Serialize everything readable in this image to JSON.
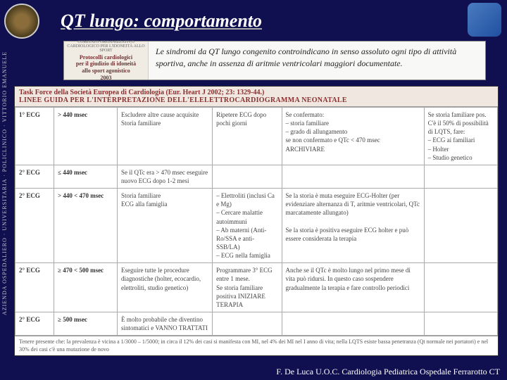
{
  "header": {
    "title": "QT lungo: comportamento",
    "vertical_text": "AZIENDA OSPEDALIERO · UNIVERSITARIA · POLICLINICO · VITTORIO EMANUELE"
  },
  "protocol_box": {
    "mini": "COMITATO ORGANIZZATIVO CARDIOLOGICO PER L'IDONEITÀ ALLO SPORT",
    "line1": "Protocolli cardiologici",
    "line2": "per il giudizio di idoneità",
    "line3": "allo sport agonistico",
    "line4": "2003"
  },
  "indication": "Le sindromi da QT lungo congenito controindicano in senso assoluto ogni tipo di attività sportiva, anche in assenza di aritmie ventricolari maggiori documentate.",
  "taskforce": {
    "line1": "Task Force della Società Europea di Cardiologia (Eur. Heart J 2002; 23: 1329-44.)",
    "line2": "LINEE GUIDA PER L'INTERPRETAZIONE DELL'ELELETTROCARDIOGRAMMA NEONATALE"
  },
  "rows": [
    {
      "label": "1° ECG",
      "range": "> 440 msec",
      "c3": "Escludere altre cause acquisite\nStoria familiare",
      "c4": "Ripetere ECG dopo pochi giorni",
      "c5": "Se confermato:\n– storia familiare\n– grado di allungamento\nse non confermato e QTc < 470 msec ARCHIVIARE",
      "c6": "Se storia familiare pos. C'è il 50% di possibilità di LQTS, fare:\n– ECG ai familiari\n– Holter\n– Studio genetico"
    },
    {
      "label": "2° ECG",
      "range": "≤ 440 msec",
      "c3": "Se il QTc era > 470 msec eseguire nuovo ECG dopo 1-2 mesi",
      "c4": "",
      "c5": "",
      "c6": ""
    },
    {
      "label": "2° ECG",
      "range": "> 440 < 470 msec",
      "c3": "Storia familiare\nECG alla famiglia",
      "c4": "– Elettroliti (inclusi Ca e Mg)\n– Cercare malattie autoimmuni\n– Ab materni (Anti-Ro/SSA e anti-SSB/LA)\n– ECG nella famiglia",
      "c5": "Se la storia è muta eseguire ECG-Holter (per evidenziare alternanza di T, aritmie ventricolari, QTc marcatamente allungato)\n\nSe la storia è positiva eseguire ECG holter e può essere considerata la terapia",
      "c6": ""
    },
    {
      "label": "2° ECG",
      "range": "≥ 470 < 500 msec",
      "c3": "Eseguire tutte le procedure diagnostiche (holter, ecocardio, elettroliti, studio genetico)",
      "c4": "Programmare 3° ECG entre 1 mese.\nSe storia familiare positiva INIZIARE TERAPIA",
      "c5": "Anche se il QTc è molto lungo nel primo mese di vita può ridursi. In questo caso sospendere gradualmente la terapia e fare controllo periodici",
      "c6": ""
    },
    {
      "label": "2° ECG",
      "range": "≥ 500 msec",
      "c3": "È molto probabile che diventino sintomatici e VANNO TRATTATI",
      "c4": "",
      "c5": "",
      "c6": ""
    }
  ],
  "footnote": "Tenere presente che: la prevalenza è vicina a 1/3000 – 1/5000; in circa il 12% dei casi si manifesta con MI, nel 4% dei MI nel I anno di vita; nella LQTS esiste bassa penetranza (Qt normale nei portatori) e nel 30% dei casi c'è una mutazione de novo",
  "footer": "F. De Luca U.O.C. Cardiologia Pediatrica Ospedale Ferrarotto  CT"
}
